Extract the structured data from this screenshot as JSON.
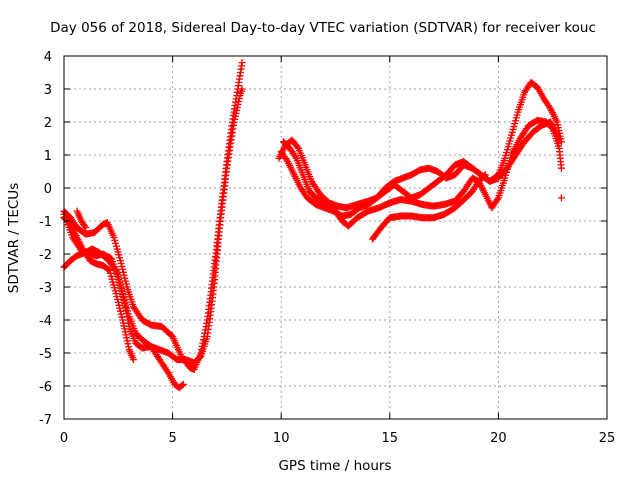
{
  "chart_data": {
    "type": "scatter",
    "title": "Day 056 of 2018, Sidereal Day-to-day VTEC variation (SDTVAR) for receiver kouc",
    "xlabel": "GPS time / hours",
    "ylabel": "SDTVAR / TECUs",
    "xlim": [
      0,
      25
    ],
    "ylim": [
      -7,
      4
    ],
    "xticks": [
      "0",
      "5",
      "10",
      "15",
      "20",
      "25"
    ],
    "yticks": [
      "-7",
      "-6",
      "-5",
      "-4",
      "-3",
      "-2",
      "-1",
      "0",
      "1",
      "2",
      "3",
      "4"
    ],
    "grid": true,
    "legend": "none",
    "marker": "plus",
    "color": "#ff0000",
    "series": [
      {
        "tracks": [
          [
            [
              0.0,
              -0.7
            ],
            [
              0.3,
              -0.9
            ],
            [
              0.6,
              -1.2
            ],
            [
              1.0,
              -1.4
            ],
            [
              1.4,
              -1.35
            ],
            [
              1.8,
              -1.1
            ],
            [
              2.0,
              -1.05
            ],
            [
              2.3,
              -1.5
            ],
            [
              2.6,
              -2.2
            ],
            [
              2.9,
              -3.0
            ],
            [
              3.2,
              -3.6
            ],
            [
              3.6,
              -4.0
            ],
            [
              4.0,
              -4.15
            ],
            [
              4.5,
              -4.2
            ],
            [
              5.0,
              -4.5
            ],
            [
              5.4,
              -5.1
            ],
            [
              5.8,
              -5.45
            ],
            [
              6.0,
              -5.5
            ],
            [
              6.3,
              -5.0
            ],
            [
              6.6,
              -4.0
            ],
            [
              6.9,
              -2.5
            ],
            [
              7.2,
              -0.8
            ],
            [
              7.5,
              0.8
            ],
            [
              7.8,
              2.2
            ],
            [
              8.0,
              3.0
            ],
            [
              8.15,
              3.6
            ],
            [
              8.2,
              3.8
            ]
          ],
          [
            [
              0.0,
              -0.8
            ],
            [
              0.4,
              -1.5
            ],
            [
              0.8,
              -1.9
            ],
            [
              1.2,
              -2.0
            ],
            [
              1.5,
              -2.05
            ],
            [
              1.8,
              -2.0
            ],
            [
              2.2,
              -2.15
            ],
            [
              2.5,
              -2.7
            ],
            [
              2.8,
              -3.5
            ],
            [
              3.0,
              -4.2
            ],
            [
              3.3,
              -4.7
            ],
            [
              3.6,
              -4.85
            ],
            [
              4.0,
              -4.8
            ],
            [
              4.4,
              -4.9
            ],
            [
              4.8,
              -5.0
            ],
            [
              5.2,
              -5.2
            ],
            [
              5.6,
              -5.2
            ],
            [
              6.0,
              -5.3
            ],
            [
              6.3,
              -5.1
            ],
            [
              6.6,
              -4.5
            ],
            [
              6.9,
              -3.0
            ],
            [
              7.2,
              -1.0
            ],
            [
              7.5,
              0.6
            ],
            [
              7.8,
              1.9
            ],
            [
              8.1,
              2.8
            ],
            [
              8.2,
              3.0
            ]
          ],
          [
            [
              0.0,
              -2.4
            ],
            [
              0.3,
              -2.2
            ],
            [
              0.6,
              -2.05
            ],
            [
              1.0,
              -1.95
            ],
            [
              1.3,
              -1.85
            ],
            [
              1.6,
              -1.95
            ],
            [
              2.0,
              -2.15
            ],
            [
              2.4,
              -2.5
            ],
            [
              2.7,
              -3.2
            ],
            [
              3.0,
              -3.9
            ],
            [
              3.3,
              -4.4
            ],
            [
              3.6,
              -4.6
            ],
            [
              4.0,
              -4.8
            ],
            [
              4.4,
              -5.2
            ],
            [
              4.8,
              -5.6
            ],
            [
              5.1,
              -5.95
            ],
            [
              5.3,
              -6.05
            ],
            [
              5.5,
              -5.95
            ]
          ],
          [
            [
              0.0,
              -0.9
            ],
            [
              0.3,
              -1.1
            ],
            [
              0.6,
              -1.5
            ],
            [
              0.9,
              -1.9
            ],
            [
              1.2,
              -2.2
            ],
            [
              1.5,
              -2.3
            ],
            [
              1.8,
              -2.35
            ],
            [
              2.1,
              -2.5
            ],
            [
              2.4,
              -3.2
            ],
            [
              2.7,
              -4.0
            ],
            [
              3.0,
              -4.9
            ],
            [
              3.2,
              -5.2
            ]
          ],
          [
            [
              0.6,
              -0.7
            ],
            [
              0.8,
              -1.0
            ],
            [
              1.0,
              -1.2
            ]
          ],
          [
            [
              9.9,
              0.9
            ],
            [
              10.2,
              1.3
            ],
            [
              10.5,
              1.45
            ],
            [
              10.8,
              1.2
            ],
            [
              11.1,
              0.7
            ],
            [
              11.4,
              0.2
            ],
            [
              11.8,
              -0.2
            ],
            [
              12.2,
              -0.45
            ],
            [
              12.6,
              -0.55
            ],
            [
              13.0,
              -0.6
            ],
            [
              13.5,
              -0.5
            ],
            [
              14.0,
              -0.4
            ],
            [
              14.4,
              -0.3
            ],
            [
              14.8,
              0.0
            ],
            [
              15.2,
              0.2
            ],
            [
              15.6,
              0.3
            ],
            [
              16.0,
              0.4
            ],
            [
              16.4,
              0.55
            ],
            [
              16.8,
              0.6
            ],
            [
              17.2,
              0.5
            ],
            [
              17.6,
              0.3
            ],
            [
              18.0,
              0.4
            ],
            [
              18.4,
              0.7
            ],
            [
              18.8,
              0.6
            ],
            [
              19.2,
              0.4
            ],
            [
              19.6,
              0.2
            ],
            [
              20.0,
              0.4
            ],
            [
              20.3,
              0.9
            ],
            [
              20.6,
              1.6
            ],
            [
              20.9,
              2.3
            ],
            [
              21.2,
              2.9
            ],
            [
              21.5,
              3.2
            ],
            [
              21.8,
              3.05
            ],
            [
              22.1,
              2.7
            ],
            [
              22.4,
              2.4
            ],
            [
              22.7,
              2.0
            ],
            [
              22.9,
              1.4
            ]
          ],
          [
            [
              10.0,
              1.1
            ],
            [
              10.3,
              0.8
            ],
            [
              10.6,
              0.4
            ],
            [
              10.9,
              0.0
            ],
            [
              11.2,
              -0.3
            ],
            [
              11.6,
              -0.5
            ],
            [
              12.0,
              -0.6
            ],
            [
              12.4,
              -0.7
            ],
            [
              12.8,
              -0.85
            ],
            [
              13.2,
              -0.8
            ],
            [
              13.6,
              -0.6
            ],
            [
              14.0,
              -0.5
            ],
            [
              14.4,
              -0.3
            ],
            [
              14.8,
              -0.1
            ],
            [
              15.2,
              0.1
            ],
            [
              15.6,
              -0.1
            ],
            [
              16.0,
              -0.3
            ],
            [
              16.4,
              -0.2
            ],
            [
              16.8,
              0.0
            ],
            [
              17.2,
              0.2
            ],
            [
              17.6,
              0.4
            ],
            [
              18.0,
              0.7
            ],
            [
              18.4,
              0.8
            ],
            [
              18.8,
              0.6
            ],
            [
              19.2,
              0.4
            ],
            [
              19.6,
              0.2
            ],
            [
              20.0,
              0.3
            ],
            [
              20.4,
              0.6
            ],
            [
              20.8,
              1.0
            ],
            [
              21.2,
              1.4
            ],
            [
              21.6,
              1.7
            ],
            [
              22.0,
              1.9
            ],
            [
              22.4,
              2.0
            ],
            [
              22.8,
              1.5
            ]
          ],
          [
            [
              10.1,
              1.4
            ],
            [
              10.4,
              1.2
            ],
            [
              10.7,
              0.9
            ],
            [
              11.0,
              0.4
            ],
            [
              11.3,
              -0.1
            ],
            [
              11.6,
              -0.3
            ],
            [
              12.0,
              -0.5
            ],
            [
              12.4,
              -0.6
            ],
            [
              12.8,
              -1.0
            ],
            [
              13.1,
              -1.15
            ],
            [
              13.5,
              -0.9
            ],
            [
              14.0,
              -0.7
            ],
            [
              14.5,
              -0.6
            ],
            [
              15.0,
              -0.45
            ],
            [
              15.5,
              -0.35
            ],
            [
              16.0,
              -0.4
            ],
            [
              16.5,
              -0.5
            ],
            [
              17.0,
              -0.55
            ],
            [
              17.5,
              -0.5
            ],
            [
              18.0,
              -0.4
            ],
            [
              18.4,
              -0.1
            ],
            [
              18.8,
              0.3
            ],
            [
              19.1,
              0.2
            ],
            [
              19.4,
              -0.2
            ],
            [
              19.7,
              -0.6
            ],
            [
              20.0,
              -0.3
            ],
            [
              20.3,
              0.3
            ],
            [
              20.6,
              1.0
            ],
            [
              21.0,
              1.5
            ],
            [
              21.4,
              1.9
            ],
            [
              21.8,
              2.05
            ],
            [
              22.2,
              2.0
            ],
            [
              22.5,
              1.8
            ],
            [
              22.8,
              1.2
            ],
            [
              22.9,
              0.6
            ]
          ],
          [
            [
              14.2,
              -1.55
            ],
            [
              14.6,
              -1.2
            ],
            [
              15.0,
              -0.9
            ],
            [
              15.5,
              -0.85
            ],
            [
              16.0,
              -0.85
            ],
            [
              16.5,
              -0.9
            ],
            [
              17.0,
              -0.9
            ],
            [
              17.5,
              -0.8
            ],
            [
              18.0,
              -0.6
            ],
            [
              18.5,
              -0.3
            ],
            [
              18.8,
              -0.1
            ],
            [
              19.1,
              0.2
            ],
            [
              19.4,
              0.4
            ]
          ],
          [
            [
              22.9,
              -0.3
            ]
          ]
        ]
      }
    ]
  }
}
